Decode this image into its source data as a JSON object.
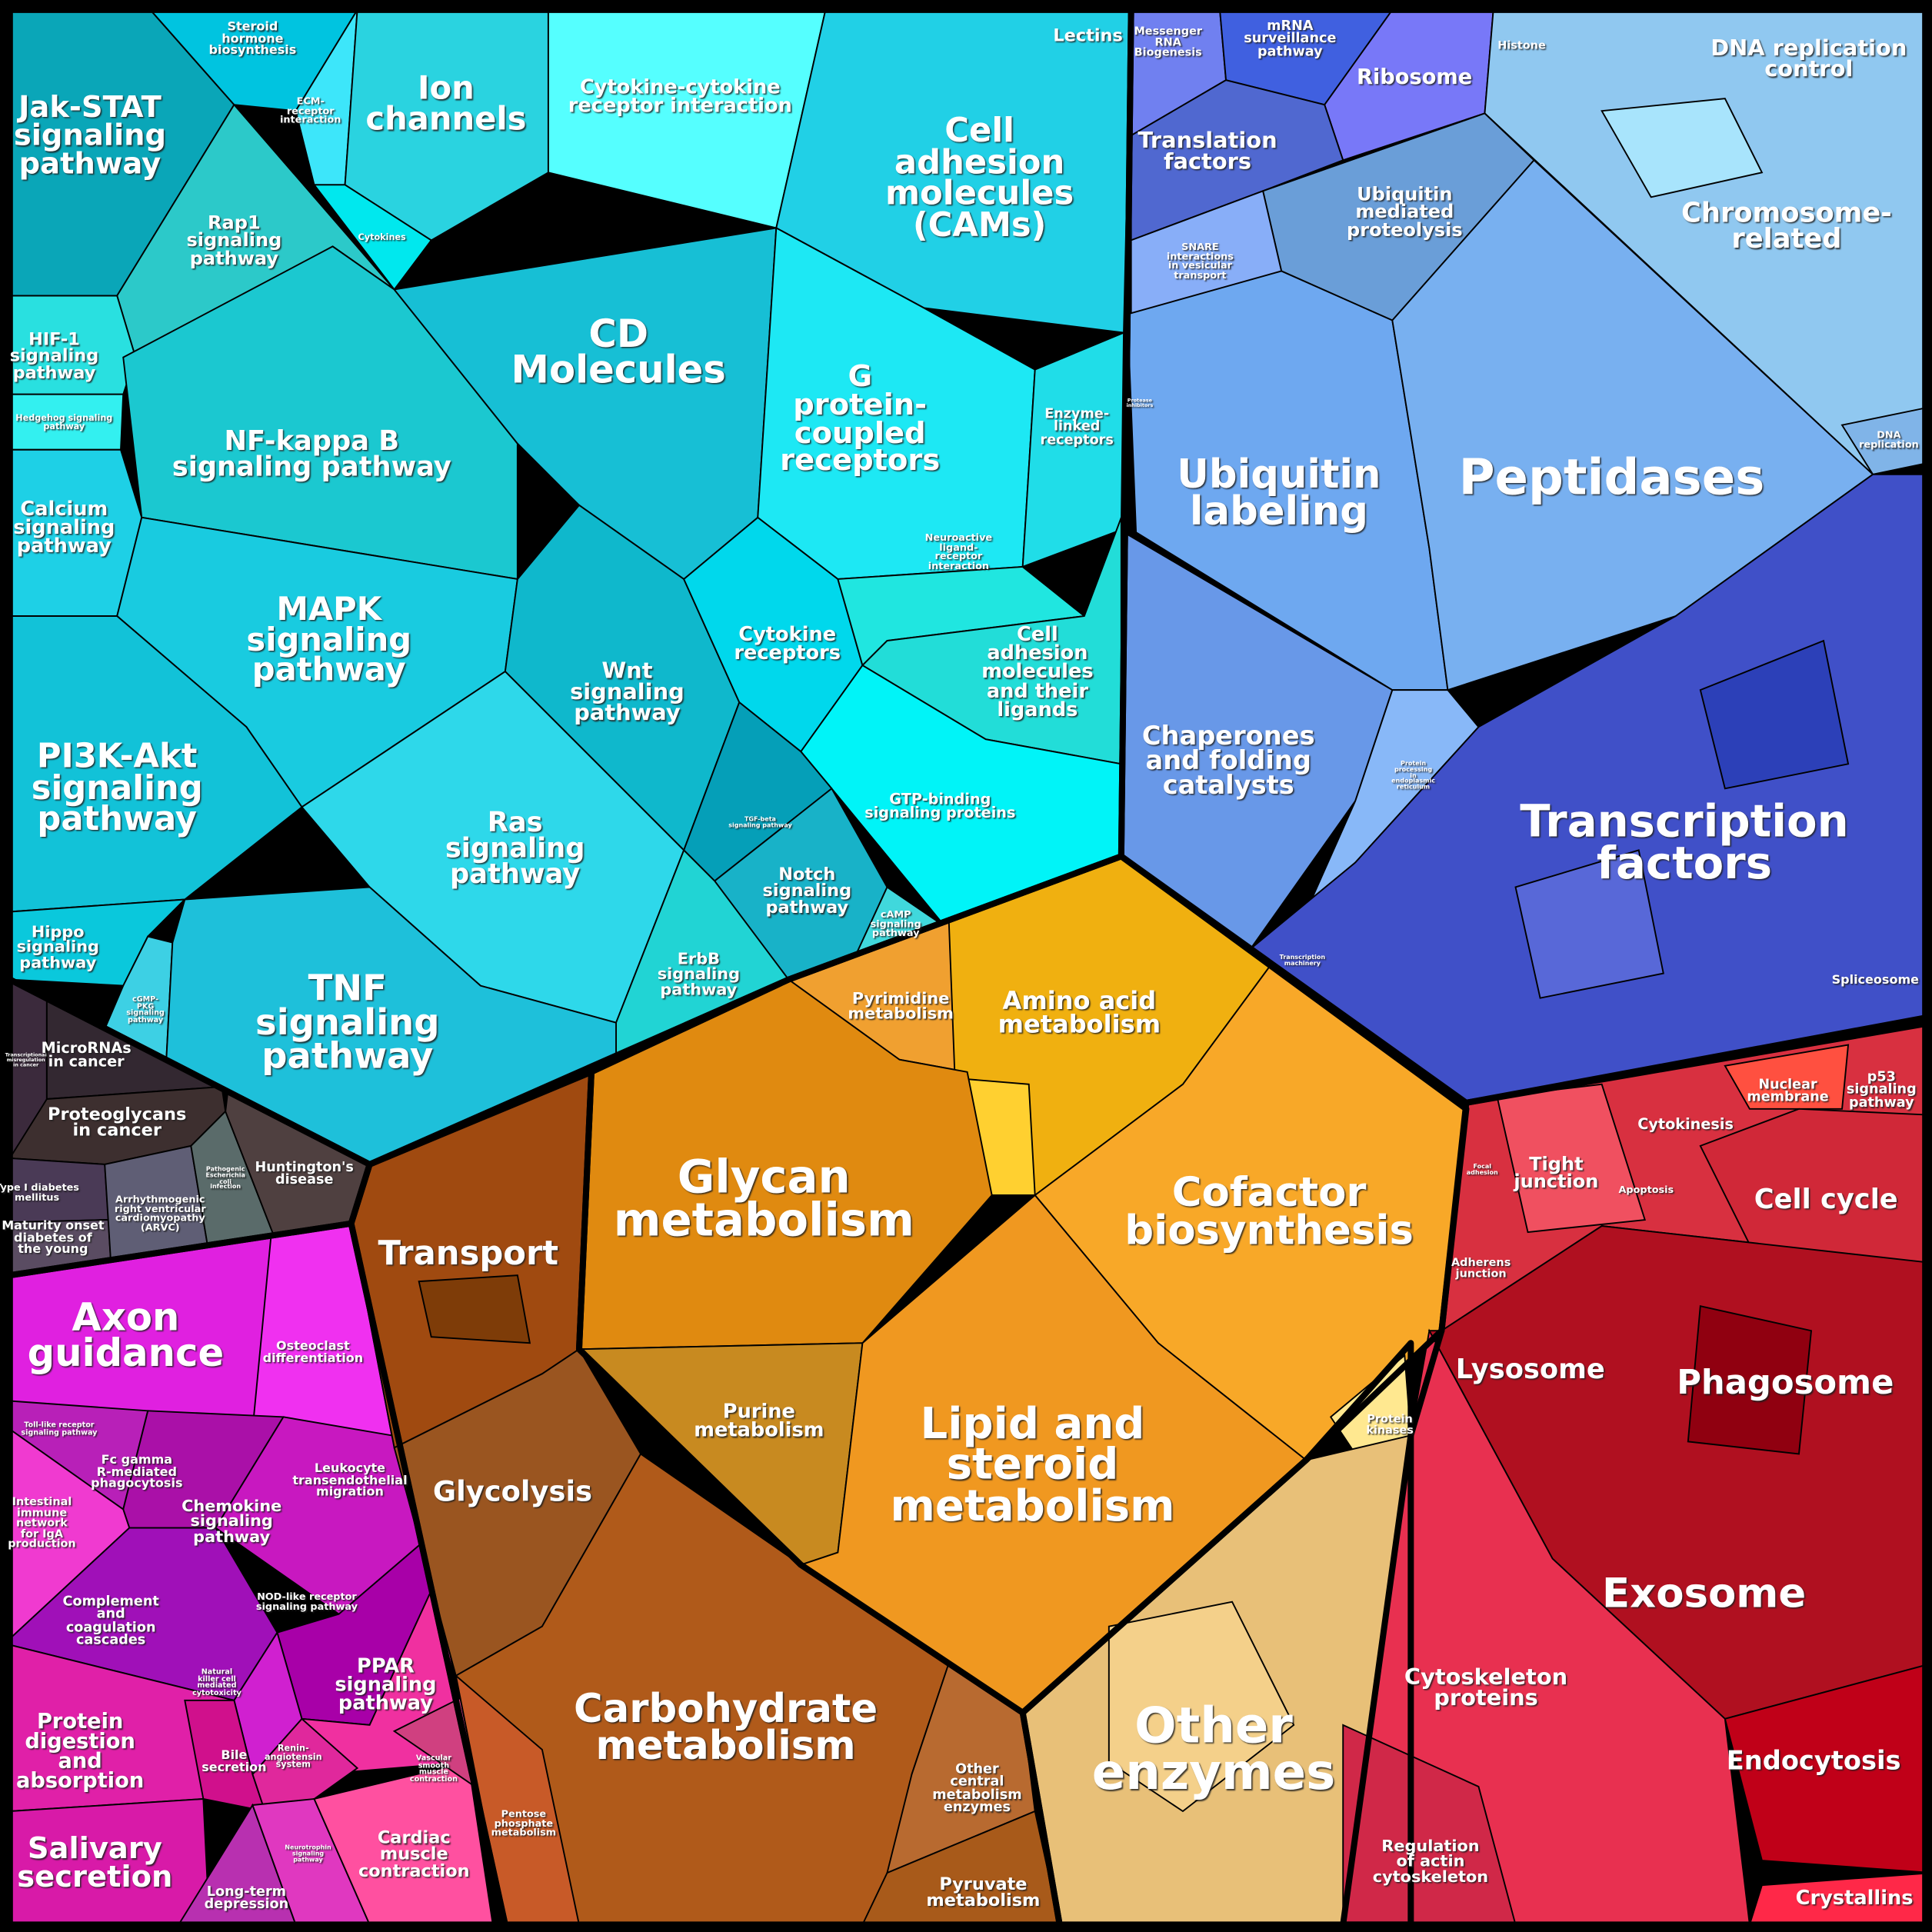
{
  "colors": {
    "signaling": "#12c2d8",
    "disease": "#3d2f2f",
    "organismal": "#e020c0",
    "carbohydrate": "#a85518",
    "metabolism": "#f0a020",
    "other_enzymes": "#e8c078",
    "genetic_information": "#6ea8f0",
    "transcription": "#4050c8",
    "cellular_processes": "#c01828",
    "border": "#000000"
  },
  "signaling": {
    "labels": [
      "Jak-STAT\nsignaling\npathway",
      "Steroid\nhormone\nbiosynthesis",
      "ECM-\nreceptor\ninteraction",
      "Ion\nchannels",
      "Cytokine-cytokine\nreceptor interaction",
      "Lectins",
      "Cell\nadhesion\nmolecules\n(CAMs)",
      "Cytokines",
      "Rap1\nsignaling\npathway",
      "HIF-1\nsignaling\npathway",
      "Hedgehog signaling\npathway",
      "CD\nMolecules",
      "G\nprotein-\ncoupled\nreceptors",
      "Enzyme-\nlinked\nreceptors",
      "NF-kappa B\nsignaling pathway",
      "Calcium\nsignaling\npathway",
      "Neuroactive\nligand-\nreceptor\ninteraction",
      "MAPK\nsignaling\npathway",
      "Wnt\nsignaling\npathway",
      "Cytokine\nreceptors",
      "Cell\nadhesion\nmolecules\nand their\nligands",
      "PI3K-Akt\nsignaling\npathway",
      "GTP-binding\nsignaling proteins",
      "TGF-beta\nsignaling pathway",
      "Ras\nsignaling\npathway",
      "Notch\nsignaling\npathway",
      "cAMP\nsignaling\npathway",
      "Hippo\nsignaling\npathway",
      "ErbB\nsignaling\npathway",
      "cGMP-\nPKG\nsignaling\npathway",
      "TNF\nsignaling\npathway"
    ]
  },
  "disease": {
    "labels": [
      "Transcriptional\nmisregulation\nin cancer",
      "MicroRNAs\nin cancer",
      "Proteoglycans\nin cancer",
      "Huntington's\ndisease",
      "Type I diabetes\nmellitus",
      "Arrhythmogenic\nright ventricular\ncardiomyopathy\n(ARVC)",
      "Pathogenic\nEscherichia\ncoli\ninfection",
      "Maturity onset\ndiabetes of\nthe young"
    ]
  },
  "organismal": {
    "labels": [
      "Axon\nguidance",
      "Osteoclast\ndifferentiation",
      "Toll-like receptor\nsignaling pathway",
      "Fc gamma\nR-mediated\nphagocytosis",
      "Chemokine\nsignaling\npathway",
      "Leukocyte\ntransendothelial\nmigration",
      "Intestinal\nimmune\nnetwork\nfor IgA\nproduction",
      "Complement\nand\ncoagulation\ncascades",
      "NOD-like receptor\nsignaling pathway",
      "Natural\nkiller cell\nmediated\ncytotoxicity",
      "PPAR\nsignaling\npathway",
      "Protein\ndigestion\nand\nabsorption",
      "Bile\nsecretion",
      "Renin-\nangiotensin\nsystem",
      "Vascular\nsmooth\nmuscle\ncontraction",
      "Salivary\nsecretion",
      "Cardiac\nmuscle\ncontraction",
      "Neurotrophin\nsignaling\npathway",
      "Long-term\ndepression"
    ]
  },
  "carbohydrate": {
    "labels": [
      "Transport",
      "Glycolysis",
      "Carbohydrate\nmetabolism",
      "Pentose\nphosphate\nmetabolism",
      "Other\ncentral\nmetabolism\nenzymes",
      "Pyruvate\nmetabolism"
    ]
  },
  "metabolism": {
    "labels": [
      "Pyrimidine\nmetabolism",
      "Amino acid\nmetabolism",
      "Glycan\nmetabolism",
      "Cofactor\nbiosynthesis",
      "Purine\nmetabolism",
      "Lipid and\nsteroid\nmetabolism",
      "Protein\nkinases",
      "Other\nenzymes"
    ]
  },
  "genetic_information": {
    "labels": [
      "Messenger\nRNA\nBiogenesis",
      "mRNA\nsurveillance\npathway",
      "Ribosome",
      "Histone",
      "DNA replication\ncontrol",
      "Translation\nfactors",
      "Ubiquitin\nmediated\nproteolysis",
      "Chromosome-\nrelated",
      "SNARE\ninteractions\nin vesicular\ntransport",
      "Protease\ninhibitors",
      "Ubiquitin\nlabeling",
      "Peptidases",
      "DNA\nreplication",
      "Chaperones\nand folding\ncatalysts",
      "Protein\nprocessing\nin\nendoplasmic\nreticulum",
      "Transcription\nfactors",
      "Transcription\nmachinery",
      "Spliceosome"
    ]
  },
  "cellular_processes": {
    "labels": [
      "Nuclear\nmembrane",
      "p53\nsignaling\npathway",
      "Cytokinesis",
      "Focal\nadhesion",
      "Tight\njunction",
      "Apoptosis",
      "Cell cycle",
      "Adherens\njunction",
      "Lysosome",
      "Phagosome",
      "Exosome",
      "Cytoskeleton\nproteins",
      "Endocytosis",
      "Regulation\nof actin\ncytoskeleton",
      "Crystallins"
    ]
  }
}
